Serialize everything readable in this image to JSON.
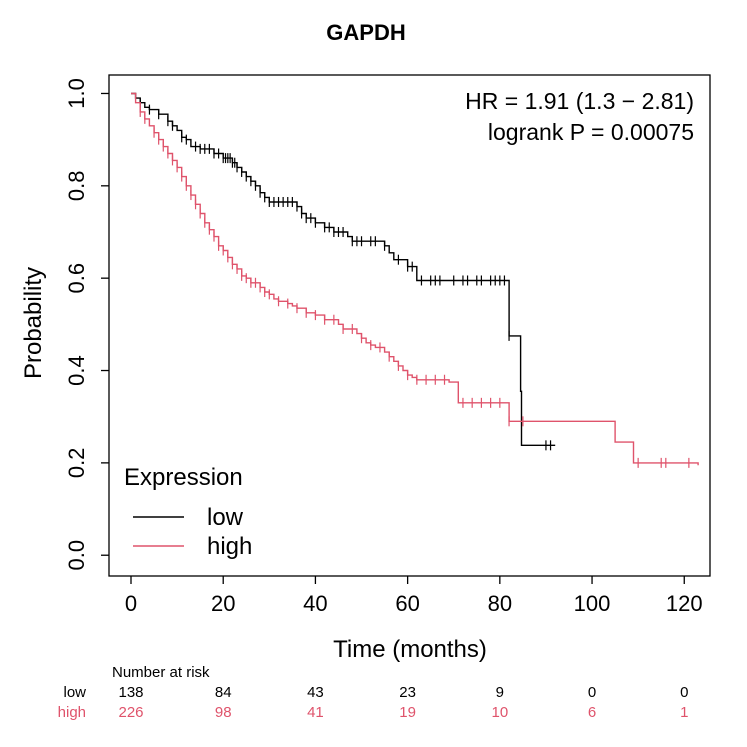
{
  "chart_data": {
    "type": "line",
    "subtype": "kaplan-meier",
    "title": "GAPDH",
    "xlabel": "Time (months)",
    "ylabel": "Probability",
    "xlim": [
      0,
      125
    ],
    "ylim": [
      0,
      1
    ],
    "xticks": [
      "0",
      "20",
      "40",
      "60",
      "80",
      "100",
      "120"
    ],
    "yticks": [
      "0.0",
      "0.2",
      "0.4",
      "0.6",
      "0.8",
      "1.0"
    ],
    "stats": {
      "hr": "HR = 1.91 (1.3 − 2.81)",
      "logrank": "logrank P = 0.00075"
    },
    "legend": {
      "title": "Expression",
      "position": "bottom-left"
    },
    "series": [
      {
        "name": "low",
        "color": "#000000",
        "steps": [
          [
            0,
            1.0
          ],
          [
            1,
            0.99
          ],
          [
            2,
            0.98
          ],
          [
            3,
            0.97
          ],
          [
            4,
            0.965
          ],
          [
            6,
            0.955
          ],
          [
            8,
            0.94
          ],
          [
            9,
            0.93
          ],
          [
            10,
            0.92
          ],
          [
            11,
            0.905
          ],
          [
            12,
            0.9
          ],
          [
            13,
            0.885
          ],
          [
            15,
            0.88
          ],
          [
            18,
            0.87
          ],
          [
            20,
            0.86
          ],
          [
            22,
            0.85
          ],
          [
            23,
            0.84
          ],
          [
            24,
            0.83
          ],
          [
            25,
            0.82
          ],
          [
            26,
            0.81
          ],
          [
            27,
            0.8
          ],
          [
            28,
            0.785
          ],
          [
            29,
            0.775
          ],
          [
            30,
            0.765
          ],
          [
            36,
            0.755
          ],
          [
            37,
            0.74
          ],
          [
            38,
            0.73
          ],
          [
            40,
            0.72
          ],
          [
            42,
            0.71
          ],
          [
            44,
            0.7
          ],
          [
            47,
            0.69
          ],
          [
            48,
            0.68
          ],
          [
            55,
            0.67
          ],
          [
            56,
            0.655
          ],
          [
            57,
            0.64
          ],
          [
            60,
            0.625
          ],
          [
            62,
            0.595
          ],
          [
            82,
            0.595
          ],
          [
            82,
            0.475
          ],
          [
            84,
            0.475
          ],
          [
            84.5,
            0.355
          ],
          [
            84.7,
            0.238
          ],
          [
            92,
            0.238
          ]
        ],
        "censor_times": [
          2,
          4,
          6,
          8,
          9,
          11,
          12,
          14,
          15,
          16,
          17,
          18,
          19,
          20,
          20.5,
          21,
          21.5,
          22,
          22.5,
          23,
          24,
          25,
          26,
          27,
          28,
          29,
          30,
          31,
          32,
          33,
          34,
          35,
          36,
          37,
          38,
          39,
          40,
          42,
          43,
          44,
          45,
          46,
          48,
          49,
          50,
          52,
          53,
          55,
          58,
          60,
          61,
          63,
          65,
          66,
          67,
          70,
          72,
          73,
          75,
          76,
          78,
          79,
          80,
          81,
          82,
          90,
          91
        ]
      },
      {
        "name": "high",
        "color": "#df536b",
        "steps": [
          [
            0,
            1.0
          ],
          [
            1,
            0.98
          ],
          [
            2,
            0.96
          ],
          [
            3,
            0.945
          ],
          [
            4,
            0.93
          ],
          [
            5,
            0.915
          ],
          [
            6,
            0.9
          ],
          [
            7,
            0.885
          ],
          [
            8,
            0.87
          ],
          [
            9,
            0.855
          ],
          [
            10,
            0.84
          ],
          [
            11,
            0.82
          ],
          [
            12,
            0.8
          ],
          [
            13,
            0.78
          ],
          [
            14,
            0.76
          ],
          [
            15,
            0.74
          ],
          [
            16,
            0.72
          ],
          [
            17,
            0.705
          ],
          [
            18,
            0.69
          ],
          [
            19,
            0.67
          ],
          [
            20,
            0.66
          ],
          [
            21,
            0.645
          ],
          [
            22,
            0.63
          ],
          [
            23,
            0.62
          ],
          [
            24,
            0.605
          ],
          [
            25,
            0.6
          ],
          [
            26,
            0.59
          ],
          [
            28,
            0.58
          ],
          [
            29,
            0.57
          ],
          [
            30,
            0.565
          ],
          [
            31,
            0.555
          ],
          [
            32,
            0.55
          ],
          [
            34,
            0.545
          ],
          [
            35,
            0.54
          ],
          [
            36,
            0.535
          ],
          [
            38,
            0.525
          ],
          [
            40,
            0.52
          ],
          [
            42,
            0.51
          ],
          [
            45,
            0.5
          ],
          [
            46,
            0.49
          ],
          [
            49,
            0.48
          ],
          [
            50,
            0.47
          ],
          [
            51,
            0.46
          ],
          [
            52,
            0.455
          ],
          [
            53,
            0.45
          ],
          [
            55,
            0.44
          ],
          [
            56,
            0.43
          ],
          [
            57,
            0.42
          ],
          [
            58,
            0.41
          ],
          [
            59,
            0.4
          ],
          [
            60,
            0.39
          ],
          [
            61,
            0.385
          ],
          [
            62,
            0.38
          ],
          [
            69,
            0.375
          ],
          [
            71,
            0.33
          ],
          [
            80,
            0.33
          ],
          [
            82,
            0.29
          ],
          [
            104,
            0.29
          ],
          [
            105,
            0.245
          ],
          [
            108,
            0.245
          ],
          [
            109,
            0.2
          ],
          [
            123,
            0.195
          ]
        ],
        "censor_times": [
          2,
          3,
          5,
          6,
          7,
          8,
          9,
          10,
          11,
          12,
          13,
          14,
          15,
          16,
          17,
          18,
          19,
          20,
          21,
          22,
          23,
          24,
          25,
          26,
          27,
          28,
          29,
          30,
          32,
          34,
          36,
          38,
          40,
          42,
          44,
          46,
          48,
          50,
          52,
          54,
          56,
          58,
          60,
          62,
          64,
          66,
          68,
          72,
          74,
          76,
          78,
          80,
          82,
          85,
          110,
          115,
          116,
          121
        ]
      }
    ],
    "risk_table": {
      "title": "Number at risk",
      "times": [
        0,
        20,
        40,
        60,
        80,
        100,
        120
      ],
      "rows": [
        {
          "name": "low",
          "color": "#000000",
          "values": [
            "138",
            "84",
            "43",
            "23",
            "9",
            "0",
            "0"
          ]
        },
        {
          "name": "high",
          "color": "#df536b",
          "values": [
            "226",
            "98",
            "41",
            "19",
            "10",
            "6",
            "1"
          ]
        }
      ]
    }
  }
}
